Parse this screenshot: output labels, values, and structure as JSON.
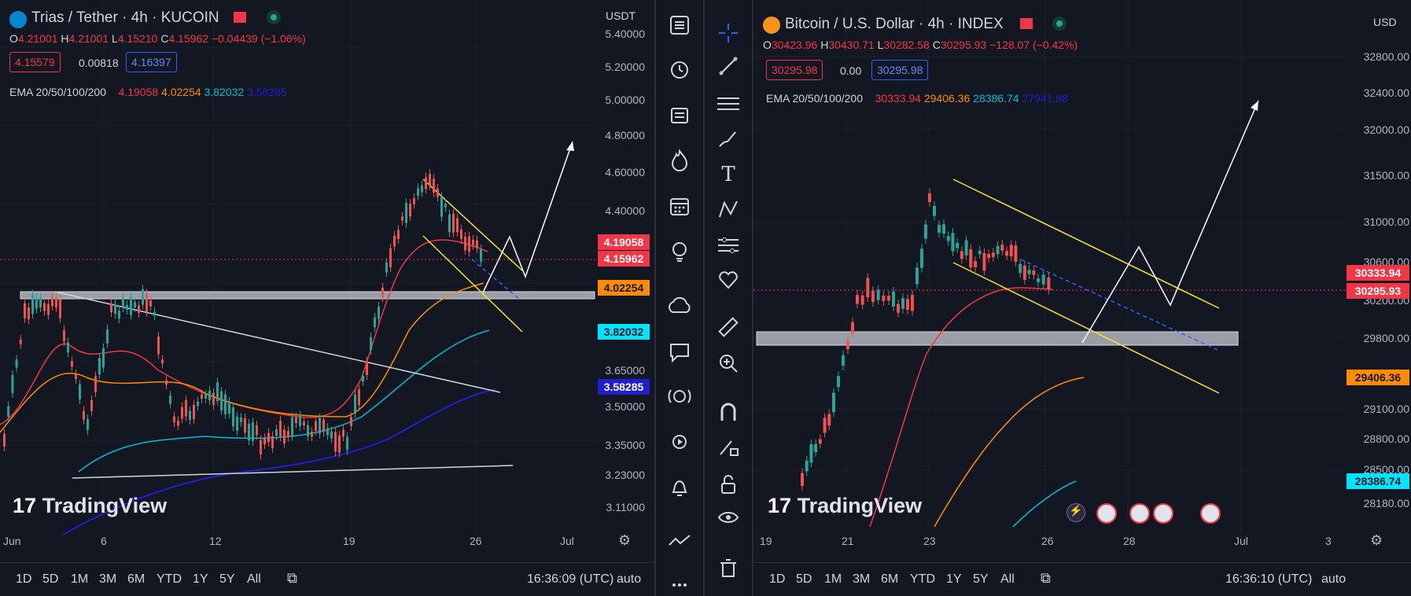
{
  "left": {
    "pair": "Trias / Tether · 4h · KUCOIN",
    "currency": "USDT",
    "ohlc": {
      "o_label": "O",
      "o": "4.21001",
      "h_label": "H",
      "h": "4.21001",
      "l_label": "L",
      "l": "4.15210",
      "c_label": "C",
      "c": "4.15962",
      "chg": "−0.04439 (−1.06%)"
    },
    "bid": "4.15579",
    "spread": "0.00818",
    "ask": "4.16397",
    "ema": {
      "label": "EMA 20/50/100/200",
      "v20": "4.19058",
      "v50": "4.02254",
      "v100": "3.82032",
      "v200": "3.58285"
    },
    "price_axis": [
      "5.40000",
      "5.20000",
      "5.00000",
      "4.80000",
      "4.60000",
      "4.40000",
      "3.65000",
      "3.50000",
      "3.35000",
      "3.23000",
      "3.11000"
    ],
    "tags": {
      "ema20": "4.19058",
      "last": "4.15962",
      "ema50": "4.02254",
      "ema100": "3.82032",
      "ema200": "3.58285"
    },
    "time_axis": [
      "Jun",
      "6",
      "12",
      "19",
      "26",
      "Jul"
    ],
    "clock": "16:36:09 (UTC)"
  },
  "right": {
    "pair": "Bitcoin / U.S. Dollar · 4h · INDEX",
    "currency": "USD",
    "ohlc": {
      "o_label": "O",
      "o": "30423.96",
      "h_label": "H",
      "h": "30430.71",
      "l_label": "L",
      "l": "30282.58",
      "c_label": "C",
      "c": "30295.93",
      "chg": "−128.07 (−0.42%)"
    },
    "bid": "30295.98",
    "spread": "0.00",
    "ask": "30295.98",
    "ema": {
      "label": "EMA 20/50/100/200",
      "v20": "30333.94",
      "v50": "29406.36",
      "v100": "28386.74",
      "v200": "27941.88"
    },
    "price_axis": [
      "32800.00",
      "32400.00",
      "32000.00",
      "31500.00",
      "31000.00",
      "30600.00",
      "30200.00",
      "29800.00",
      "29100.00",
      "28800.00",
      "28500.00",
      "28180.00"
    ],
    "tags": {
      "ema20": "30333.94",
      "last": "30295.93",
      "ema50": "29406.36",
      "ema100": "28386.74"
    },
    "time_axis": [
      "19",
      "21",
      "23",
      "26",
      "28",
      "Jul",
      "3"
    ],
    "clock": "16:36:10 (UTC)"
  },
  "ranges": [
    "1D",
    "5D",
    "1M",
    "3M",
    "6M",
    "YTD",
    "1Y",
    "5Y",
    "All"
  ],
  "brand": "TradingView",
  "auto_label": "auto",
  "toolbar_icons": [
    "menu-icon",
    "alarm-clock-icon",
    "watchlist-icon",
    "hotlist-fire-icon",
    "calendar-icon",
    "idea-lightbulb-icon",
    "chat-cloud-icon",
    "chat-bubble-icon",
    "stream-lightbulb-icon",
    "replay-icon",
    "notification-bell-icon",
    "trend-icon",
    "more-icon"
  ],
  "drawing_tools": [
    "crosshair-icon",
    "trendline-icon",
    "fib-icon",
    "brush-icon",
    "text-icon",
    "pattern-icon",
    "forecast-icon",
    "heart-icon",
    "ruler-icon",
    "zoom-icon",
    "magnet-icon",
    "lock-draw-icon",
    "unlock-icon",
    "eye-icon",
    "trash-icon"
  ],
  "colors": {
    "bg": "#131722",
    "up": "#26a69a",
    "down": "#ef5350",
    "ema20": "#f23645",
    "ema50": "#ff8c00",
    "ema100": "#00bcd4",
    "ema200": "#1f1fd1",
    "yellow": "#f5e136",
    "blue": "#2962ff"
  }
}
